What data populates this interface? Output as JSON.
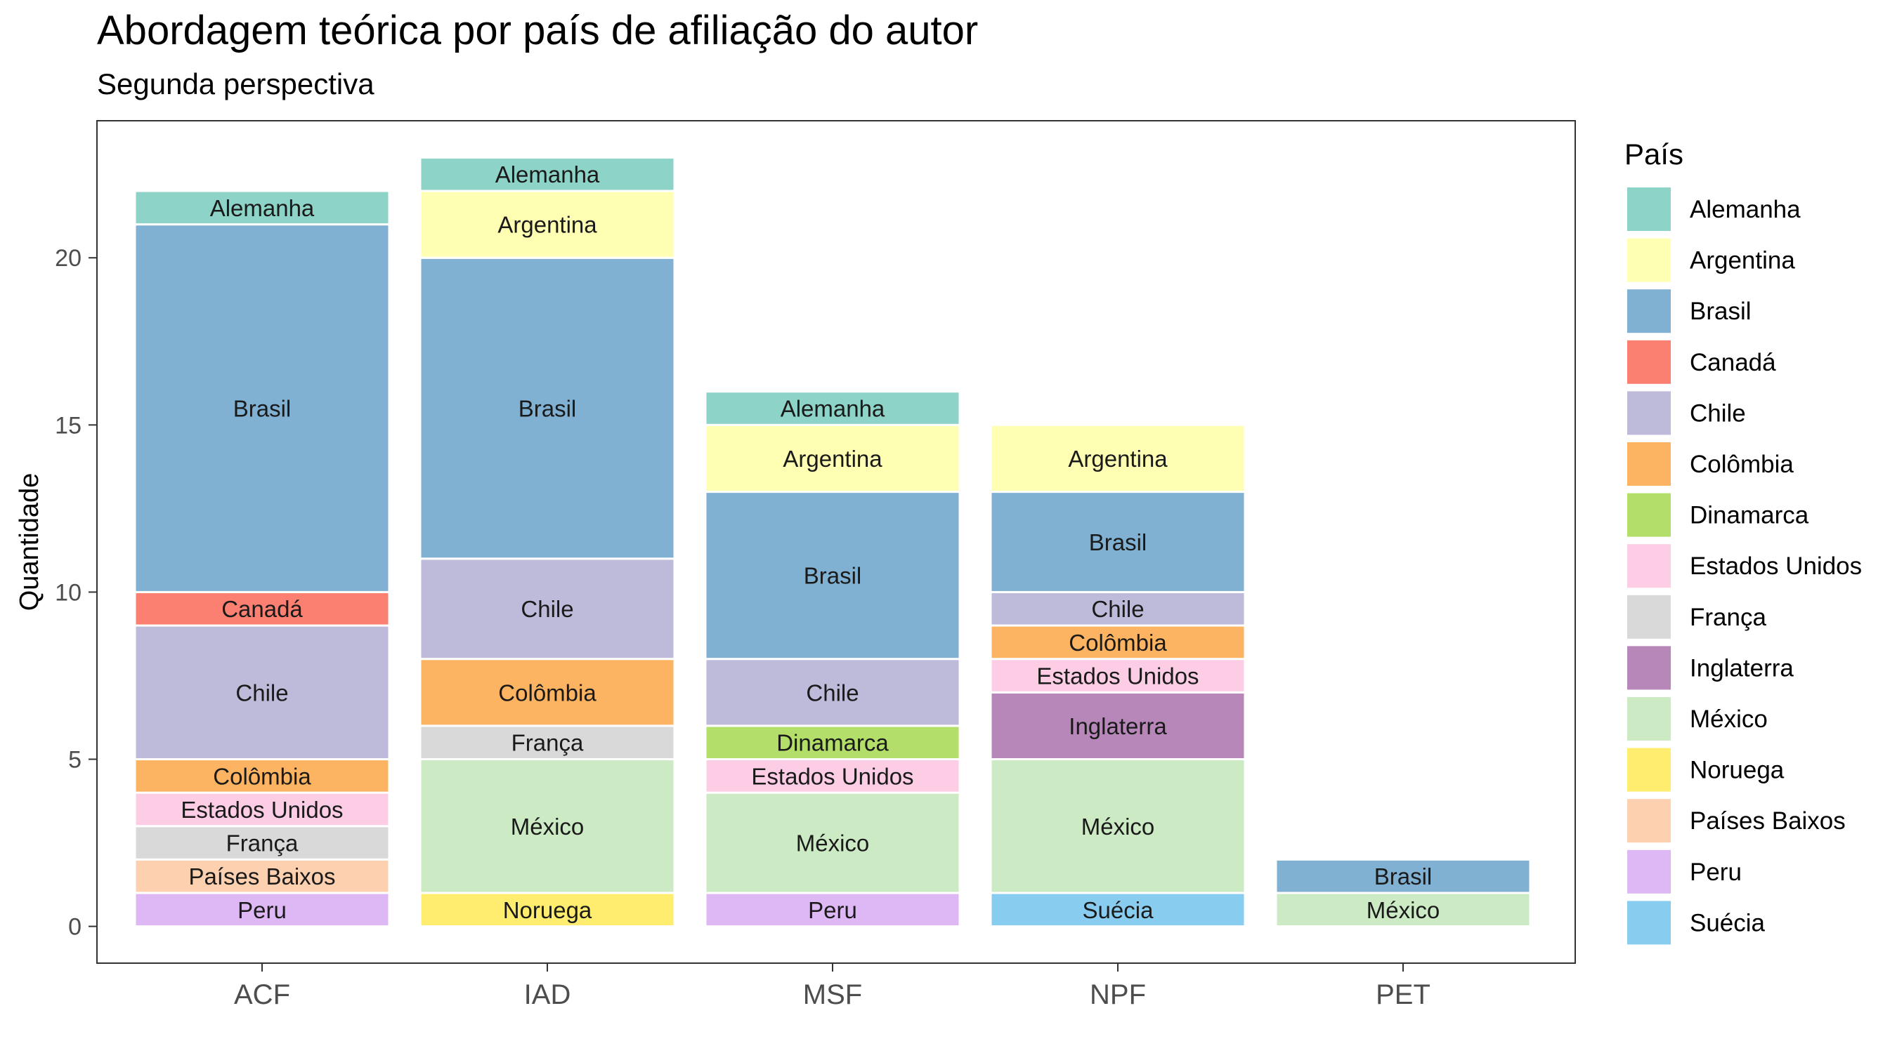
{
  "title": "Abordagem teórica por país de afiliação do autor",
  "subtitle": "Segunda perspectiva",
  "chart_data": {
    "type": "bar",
    "stacked": true,
    "title": "Abordagem teórica por país de afiliação do autor",
    "subtitle": "Segunda perspectiva",
    "xlabel": "",
    "ylabel": "Quantidade",
    "ylim": [
      0,
      23
    ],
    "yticks": [
      "0",
      "5",
      "10",
      "15",
      "20"
    ],
    "categories": [
      "ACF",
      "IAD",
      "MSF",
      "NPF",
      "PET"
    ],
    "legend_title": "País",
    "legend_position": "right",
    "series": [
      {
        "name": "Alemanha",
        "color": "#8DD3C7",
        "values": [
          1,
          1,
          1,
          0,
          0
        ]
      },
      {
        "name": "Argentina",
        "color": "#FFFFB3",
        "values": [
          0,
          2,
          2,
          2,
          0
        ]
      },
      {
        "name": "Brasil",
        "color": "#80B1D3",
        "values": [
          11,
          9,
          5,
          3,
          1
        ]
      },
      {
        "name": "Canadá",
        "color": "#FB8072",
        "values": [
          1,
          0,
          0,
          0,
          0
        ]
      },
      {
        "name": "Chile",
        "color": "#BEBADA",
        "values": [
          4,
          3,
          2,
          1,
          0
        ]
      },
      {
        "name": "Colômbia",
        "color": "#FDB462",
        "values": [
          1,
          2,
          0,
          1,
          0
        ]
      },
      {
        "name": "Dinamarca",
        "color": "#B3DE69",
        "values": [
          0,
          0,
          1,
          0,
          0
        ]
      },
      {
        "name": "Estados Unidos",
        "color": "#FCCDE5",
        "values": [
          1,
          0,
          1,
          1,
          0
        ]
      },
      {
        "name": "França",
        "color": "#D9D9D9",
        "values": [
          1,
          1,
          0,
          0,
          0
        ]
      },
      {
        "name": "Inglaterra",
        "color": "#B787B9",
        "values": [
          0,
          0,
          0,
          2,
          0
        ]
      },
      {
        "name": "México",
        "color": "#CCEBC5",
        "values": [
          0,
          4,
          3,
          4,
          1
        ]
      },
      {
        "name": "Noruega",
        "color": "#FFED6F",
        "values": [
          0,
          1,
          0,
          0,
          0
        ]
      },
      {
        "name": "Países Baixos",
        "color": "#FDD0B0",
        "values": [
          1,
          0,
          0,
          0,
          0
        ]
      },
      {
        "name": "Peru",
        "color": "#DEB8F5",
        "values": [
          1,
          0,
          1,
          0,
          0
        ]
      },
      {
        "name": "Suécia",
        "color": "#88CDF0",
        "values": [
          0,
          0,
          0,
          1,
          0
        ]
      }
    ]
  }
}
